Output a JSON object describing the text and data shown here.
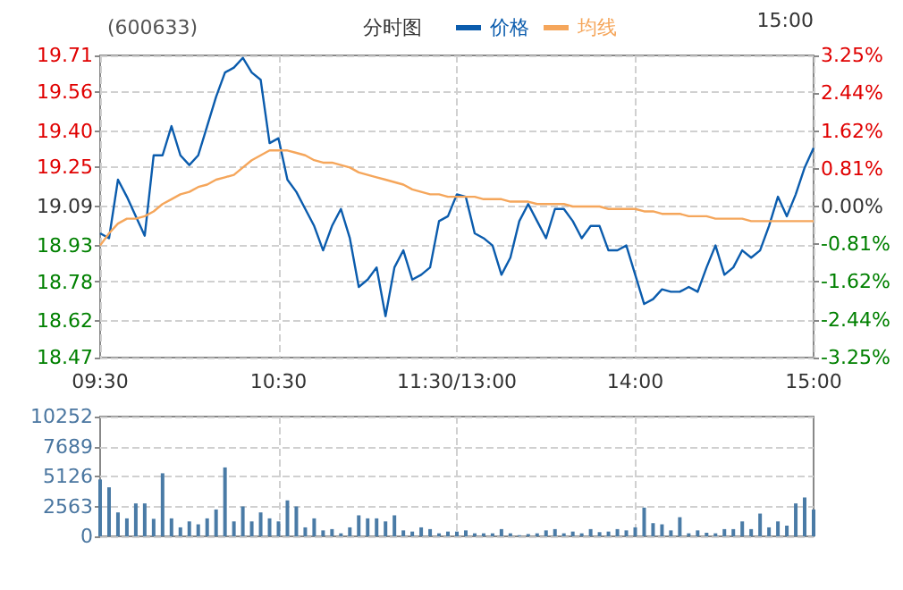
{
  "chart_data": [
    {
      "type": "line",
      "title": "分时图",
      "subtitle": "(600633)",
      "annotations": [
        "15:00"
      ],
      "categories": [
        "09:30",
        null,
        null,
        null,
        null,
        null,
        null,
        null,
        null,
        null,
        null,
        null,
        null,
        null,
        null,
        null,
        null,
        null,
        null,
        null,
        "10:30",
        null,
        null,
        null,
        null,
        null,
        null,
        null,
        null,
        null,
        null,
        null,
        null,
        null,
        null,
        null,
        null,
        null,
        null,
        null,
        "11:30/13:00",
        null,
        null,
        null,
        null,
        null,
        null,
        null,
        null,
        null,
        null,
        null,
        null,
        null,
        null,
        null,
        null,
        null,
        null,
        null,
        "14:00",
        null,
        null,
        null,
        null,
        null,
        null,
        null,
        null,
        null,
        null,
        null,
        null,
        null,
        null,
        null,
        null,
        null,
        null,
        null,
        "15:00"
      ],
      "series": [
        {
          "name": "价格",
          "color": "#0b5cad",
          "values": [
            18.98,
            18.96,
            19.2,
            19.13,
            19.05,
            18.97,
            19.3,
            19.3,
            19.42,
            19.3,
            19.26,
            19.3,
            19.42,
            19.54,
            19.64,
            19.66,
            19.7,
            19.64,
            19.61,
            19.35,
            19.37,
            19.2,
            19.15,
            19.08,
            19.01,
            18.91,
            19.01,
            19.08,
            18.96,
            18.76,
            18.79,
            18.84,
            18.64,
            18.84,
            18.91,
            18.79,
            18.81,
            18.84,
            19.03,
            19.05,
            19.14,
            19.13,
            18.98,
            18.96,
            18.93,
            18.81,
            18.88,
            19.03,
            19.1,
            19.03,
            18.96,
            19.08,
            19.08,
            19.03,
            18.96,
            19.01,
            19.01,
            18.91,
            18.91,
            18.93,
            18.81,
            18.69,
            18.71,
            18.75,
            18.74,
            18.74,
            18.76,
            18.74,
            18.84,
            18.93,
            18.81,
            18.84,
            18.91,
            18.88,
            18.91,
            19.01,
            19.13,
            19.05,
            19.14,
            19.25,
            19.33
          ]
        },
        {
          "name": "均线",
          "color": "#f5a65b",
          "values": [
            18.93,
            18.98,
            19.02,
            19.04,
            19.04,
            19.05,
            19.07,
            19.1,
            19.12,
            19.14,
            19.15,
            19.17,
            19.18,
            19.2,
            19.21,
            19.22,
            19.25,
            19.28,
            19.3,
            19.32,
            19.32,
            19.32,
            19.31,
            19.3,
            19.28,
            19.27,
            19.27,
            19.26,
            19.25,
            19.23,
            19.22,
            19.21,
            19.2,
            19.19,
            19.18,
            19.16,
            19.15,
            19.14,
            19.14,
            19.13,
            19.13,
            19.13,
            19.13,
            19.12,
            19.12,
            19.12,
            19.11,
            19.11,
            19.11,
            19.1,
            19.1,
            19.1,
            19.1,
            19.09,
            19.09,
            19.09,
            19.09,
            19.08,
            19.08,
            19.08,
            19.08,
            19.07,
            19.07,
            19.06,
            19.06,
            19.06,
            19.05,
            19.05,
            19.05,
            19.04,
            19.04,
            19.04,
            19.04,
            19.03,
            19.03,
            19.03,
            19.03,
            19.03,
            19.03,
            19.03,
            19.03
          ]
        }
      ],
      "ylim": [
        18.47,
        19.71
      ],
      "yticks": [
        18.47,
        18.62,
        18.78,
        18.93,
        19.09,
        19.25,
        {
          "value": 19.4,
          "label": "19.40"
        },
        19.56,
        19.71
      ],
      "y2lim": [
        -3.25,
        3.25
      ],
      "y2ticks": [
        {
          "value": -3.25,
          "label": "-3.25%"
        },
        {
          "value": -2.44,
          "label": "-2.44%"
        },
        {
          "value": -1.62,
          "label": "-1.62%"
        },
        {
          "value": -0.81,
          "label": "-0.81%"
        },
        {
          "value": 0,
          "label": "0.00%"
        },
        {
          "value": 0.81,
          "label": "0.81%"
        },
        {
          "value": 1.62,
          "label": "1.62%"
        },
        {
          "value": 2.44,
          "label": "2.44%"
        },
        {
          "value": 3.25,
          "label": "3.25%"
        }
      ],
      "grid": true,
      "legend": "top",
      "marker": "none",
      "line_style": "solid"
    },
    {
      "type": "bar",
      "tick_labels": "y",
      "grid": true,
      "categories": [
        null,
        null,
        null,
        null,
        null,
        null,
        null,
        null,
        null,
        null,
        null,
        null,
        null,
        null,
        null,
        null,
        null,
        null,
        null,
        null,
        null,
        null,
        null,
        null,
        null,
        null,
        null,
        null,
        null,
        null,
        null,
        null,
        null,
        null,
        null,
        null,
        null,
        null,
        null,
        null,
        null,
        null,
        null,
        null,
        null,
        null,
        null,
        null,
        null,
        null,
        null,
        null,
        null,
        null,
        null,
        null,
        null,
        null,
        null,
        null,
        null,
        null,
        null,
        null,
        null,
        null,
        null,
        null,
        null,
        null,
        null,
        null,
        null,
        null,
        null,
        null,
        null,
        null,
        null,
        null,
        null
      ],
      "color": "#4a7ba6",
      "values": [
        4870,
        4200,
        2050,
        1540,
        2820,
        2820,
        1500,
        5400,
        1540,
        770,
        1280,
        1030,
        1540,
        2300,
        5900,
        1280,
        2560,
        1280,
        2050,
        1540,
        1280,
        3080,
        2560,
        770,
        1540,
        510,
        620,
        260,
        770,
        1800,
        1540,
        1540,
        1280,
        1800,
        510,
        410,
        770,
        620,
        260,
        410,
        410,
        510,
        260,
        260,
        260,
        620,
        260,
        100,
        200,
        260,
        510,
        620,
        260,
        410,
        260,
        620,
        360,
        410,
        620,
        510,
        770,
        2460,
        1130,
        1030,
        510,
        1640,
        260,
        510,
        310,
        260,
        620,
        620,
        1280,
        620,
        1950,
        770,
        1280,
        920,
        2820,
        3330,
        2300
      ],
      "ylim": [
        0,
        10252
      ],
      "yticks": [
        0,
        2563,
        5126,
        7689,
        10252
      ]
    }
  ]
}
